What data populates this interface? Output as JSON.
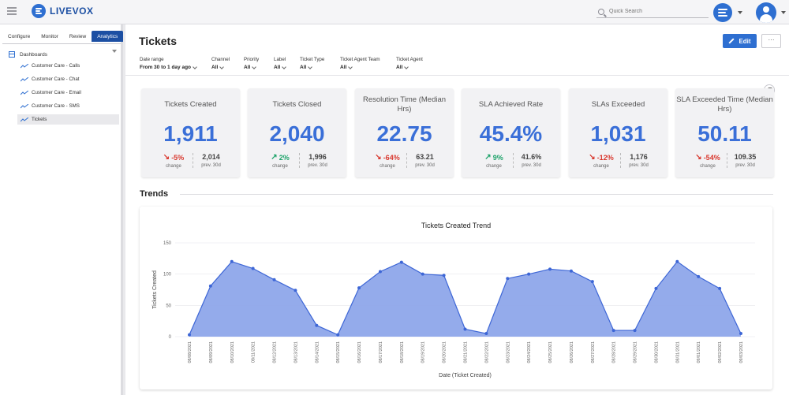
{
  "header": {
    "app_name": "LIVEVOX",
    "search_placeholder": "Quick Search"
  },
  "sidebar": {
    "tabs": [
      "Configure",
      "Monitor",
      "Review",
      "Analytics"
    ],
    "active_tab": "Analytics",
    "root_label": "Dashboards",
    "items": [
      "Customer Care - Calls",
      "Customer Care - Chat",
      "Customer Care - Email",
      "Customer Care - SMS",
      "Tickets"
    ],
    "selected_item": "Tickets"
  },
  "page": {
    "title": "Tickets",
    "edit_label": "Edit",
    "more_label": "···"
  },
  "filters": [
    {
      "label": "Date range",
      "value": "From 30 to 1 day ago"
    },
    {
      "label": "Channel",
      "value": "All"
    },
    {
      "label": "Priority",
      "value": "All"
    },
    {
      "label": "Label",
      "value": "All"
    },
    {
      "label": "Ticket Type",
      "value": "All"
    },
    {
      "label": "Ticket Agent Team",
      "value": "All"
    },
    {
      "label": "Ticket Agent",
      "value": "All"
    }
  ],
  "kpis": [
    {
      "title": "Tickets Created",
      "value": "1,911",
      "change": "-5%",
      "direction": "down",
      "change_label": "change",
      "prev": "2,014",
      "prev_label": "prev. 30d"
    },
    {
      "title": "Tickets Closed",
      "value": "2,040",
      "change": "2%",
      "direction": "up",
      "change_label": "change",
      "prev": "1,996",
      "prev_label": "prev. 30d"
    },
    {
      "title": "Resolution Time (Median Hrs)",
      "value": "22.75",
      "change": "-64%",
      "direction": "down",
      "change_label": "change",
      "prev": "63.21",
      "prev_label": "prev. 30d"
    },
    {
      "title": "SLA Achieved Rate",
      "value": "45.4%",
      "change": "9%",
      "direction": "up",
      "change_label": "change",
      "prev": "41.6%",
      "prev_label": "prev. 30d"
    },
    {
      "title": "SLAs Exceeded",
      "value": "1,031",
      "change": "-12%",
      "direction": "down",
      "change_label": "change",
      "prev": "1,176",
      "prev_label": "prev. 30d"
    },
    {
      "title": "SLA Exceeded Time (Median Hrs)",
      "value": "50.11",
      "change": "-54%",
      "direction": "down",
      "change_label": "change",
      "prev": "109.35",
      "prev_label": "prev. 30d"
    }
  ],
  "trends_title": "Trends",
  "colors": {
    "accent": "#2e6fd1",
    "kpi_value": "#3a6fd8",
    "down": "#d9382e",
    "up": "#1ea36a",
    "area_fill": "#8ea7ea",
    "area_stroke": "#3d66d6"
  },
  "chart_data": {
    "type": "area",
    "title": "Tickets Created Trend",
    "xlabel": "Date (Ticket Created)",
    "ylabel": "Tickets Created",
    "ylim": [
      0,
      150
    ],
    "yticks": [
      0,
      50,
      100,
      150
    ],
    "grid": true,
    "x": [
      "08/08/2021",
      "08/09/2021",
      "08/10/2021",
      "08/11/2021",
      "08/12/2021",
      "08/13/2021",
      "08/14/2021",
      "08/15/2021",
      "08/16/2021",
      "08/17/2021",
      "08/18/2021",
      "08/19/2021",
      "08/20/2021",
      "08/21/2021",
      "08/22/2021",
      "08/23/2021",
      "08/24/2021",
      "08/25/2021",
      "08/26/2021",
      "08/27/2021",
      "08/28/2021",
      "08/29/2021",
      "08/30/2021",
      "08/31/2021",
      "09/01/2021",
      "09/02/2021",
      "09/03/2021"
    ],
    "series": [
      {
        "values": [
          3,
          81,
          120,
          109,
          91,
          74,
          18,
          3,
          78,
          104,
          119,
          100,
          98,
          12,
          5,
          93,
          100,
          108,
          105,
          88,
          10,
          10,
          77,
          120,
          96,
          77,
          5
        ]
      }
    ]
  }
}
